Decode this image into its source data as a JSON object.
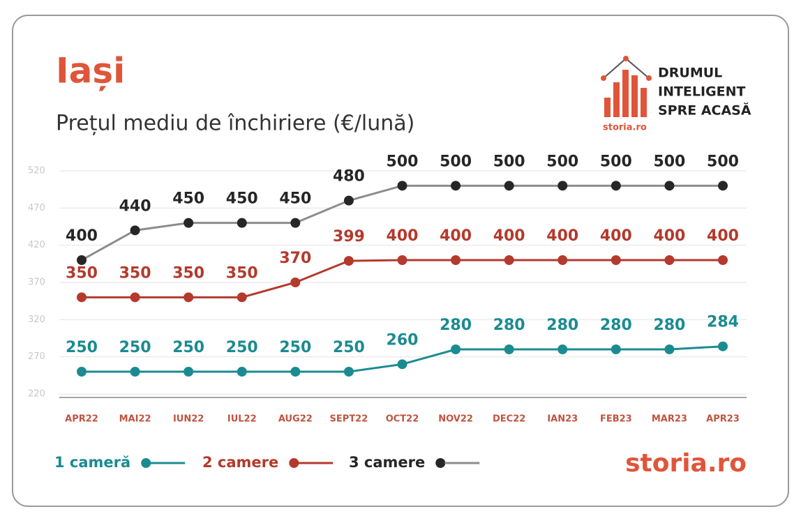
{
  "chart_data": {
    "type": "line",
    "title": "Iași",
    "subtitle": "Prețul mediu de închiriere (€/lună)",
    "logo": {
      "lines": [
        "DRUMUL",
        "INTELIGENT",
        "SPRE ACASĂ"
      ],
      "brand": "storia.ro"
    },
    "footer_brand": "storia.ro",
    "categories": [
      "APR22",
      "MAI22",
      "IUN22",
      "IUL22",
      "AUG22",
      "SEPT22",
      "OCT22",
      "NOV22",
      "DEC22",
      "IAN23",
      "FEB23",
      "MAR23",
      "APR23"
    ],
    "series": [
      {
        "name": "1 cameră",
        "color": "#1b8b91",
        "marker_color": "#1b8b91",
        "label_color": "#1b8b91",
        "values": [
          250,
          250,
          250,
          250,
          250,
          250,
          260,
          280,
          280,
          280,
          280,
          280,
          284
        ]
      },
      {
        "name": "2 camere",
        "color": "#b33a2c",
        "marker_color": "#b33a2c",
        "label_color": "#b33a2c",
        "values": [
          350,
          350,
          350,
          350,
          370,
          399,
          400,
          400,
          400,
          400,
          400,
          400,
          400
        ]
      },
      {
        "name": "3 camere",
        "color": "#8c8c8c",
        "marker_color": "#262626",
        "label_color": "#262626",
        "values": [
          400,
          440,
          450,
          450,
          450,
          480,
          500,
          500,
          500,
          500,
          500,
          500,
          500
        ]
      }
    ],
    "ylim": [
      220,
      520
    ],
    "yticks": [
      220,
      270,
      320,
      370,
      420,
      470,
      520
    ],
    "grid": true
  }
}
